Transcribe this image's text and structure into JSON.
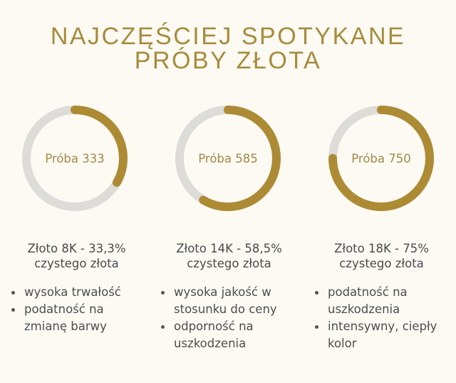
{
  "title_lines": [
    "NAJCZĘŚCIEJ SPOTYKANE",
    "PRÓBY ZŁOTA"
  ],
  "colors": {
    "accent": "#ad8b35",
    "track": "#dddcd8",
    "background": "#fdfaf4",
    "title": "#a68c3c"
  },
  "chart_data": [
    {
      "type": "pie",
      "style": "donut",
      "label": "Próba 333",
      "values": [
        33.3,
        66.7
      ],
      "unit": "%"
    },
    {
      "type": "pie",
      "style": "donut",
      "label": "Próba 585",
      "values": [
        58.5,
        41.5
      ],
      "unit": "%"
    },
    {
      "type": "pie",
      "style": "donut",
      "label": "Próba 750",
      "values": [
        75,
        25
      ],
      "unit": "%"
    }
  ],
  "columns": [
    {
      "heading_1": "Złoto 8K - 33,3%",
      "heading_2": "czystego złota",
      "bullets": [
        "wysoka trwałość",
        "podatność na zmianę barwy"
      ]
    },
    {
      "heading_1": "Złoto 14K - 58,5%",
      "heading_2": "czystego złota",
      "bullets": [
        "wysoka jakość w stosunku do ceny",
        "odporność na uszkodzenia"
      ]
    },
    {
      "heading_1": "Złoto 18K - 75%",
      "heading_2": "czystego złota",
      "bullets": [
        "podatność na uszkodzenia",
        "intensywny, ciepły kolor"
      ]
    }
  ]
}
